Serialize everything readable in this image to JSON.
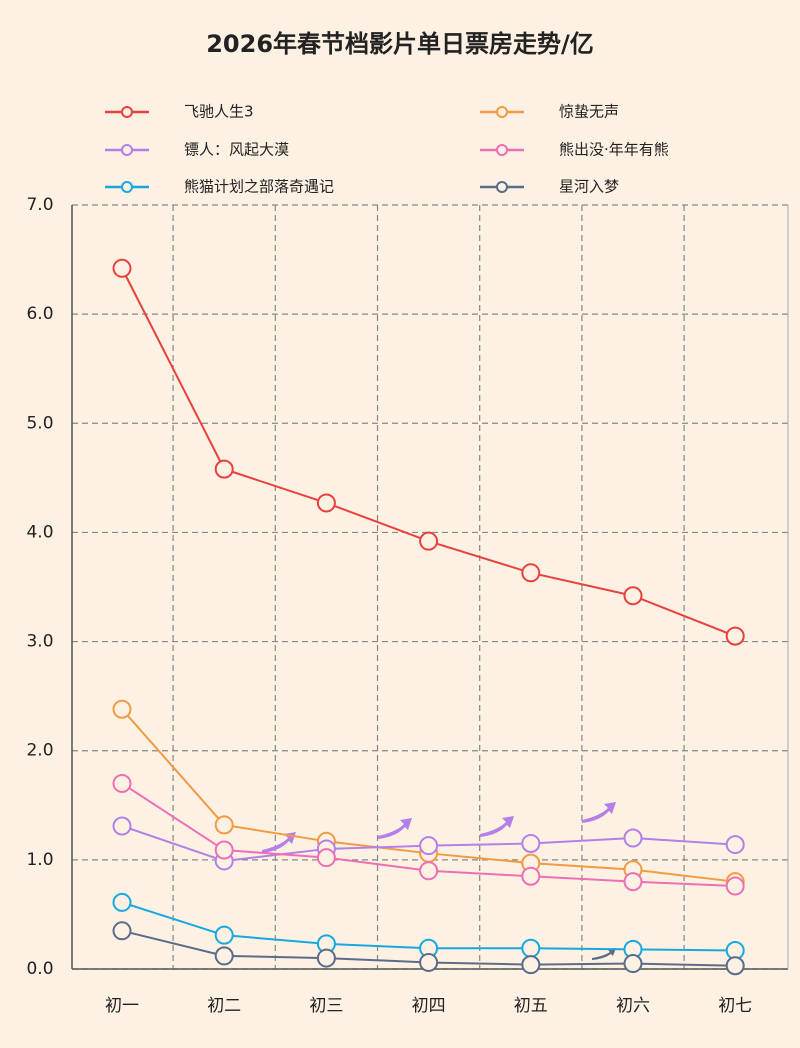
{
  "chart_data": {
    "type": "line",
    "title": "2026年春节档影片单日票房走势/亿",
    "categories": [
      "初一",
      "初二",
      "初三",
      "初四",
      "初五",
      "初六",
      "初七"
    ],
    "series": [
      {
        "name": "飞驰人生3",
        "color": "#e8413e",
        "values": [
          6.42,
          4.58,
          4.27,
          3.92,
          3.63,
          3.42,
          3.05
        ]
      },
      {
        "name": "惊蛰无声",
        "color": "#f39a43",
        "values": [
          2.38,
          1.32,
          1.17,
          1.06,
          0.97,
          0.91,
          0.8
        ]
      },
      {
        "name": "镖人：风起大漠",
        "color": "#b57fe8",
        "values": [
          1.31,
          0.99,
          1.1,
          1.13,
          1.15,
          1.2,
          1.14
        ]
      },
      {
        "name": "熊出没·年年有熊",
        "color": "#ee6fb5",
        "values": [
          1.7,
          1.09,
          1.02,
          0.9,
          0.85,
          0.8,
          0.76
        ]
      },
      {
        "name": "熊猫计划之部落奇遇记",
        "color": "#18a8e0",
        "values": [
          0.61,
          0.31,
          0.23,
          0.19,
          0.19,
          0.18,
          0.17
        ]
      },
      {
        "name": "星河入梦",
        "color": "#5b6b8a",
        "values": [
          0.35,
          0.12,
          0.1,
          0.06,
          0.04,
          0.05,
          0.03
        ]
      }
    ],
    "ylim": [
      0,
      7
    ],
    "yticks": [
      {
        "value": 0,
        "label": "0.0"
      },
      {
        "value": 1,
        "label": "1.0"
      },
      {
        "value": 2,
        "label": "2.0"
      },
      {
        "value": 3,
        "label": "3.0"
      },
      {
        "value": 4,
        "label": "4.0"
      },
      {
        "value": 5,
        "label": "5.0"
      },
      {
        "value": 6,
        "label": "6.0"
      },
      {
        "value": 7,
        "label": "7.0"
      }
    ],
    "grid": true
  }
}
